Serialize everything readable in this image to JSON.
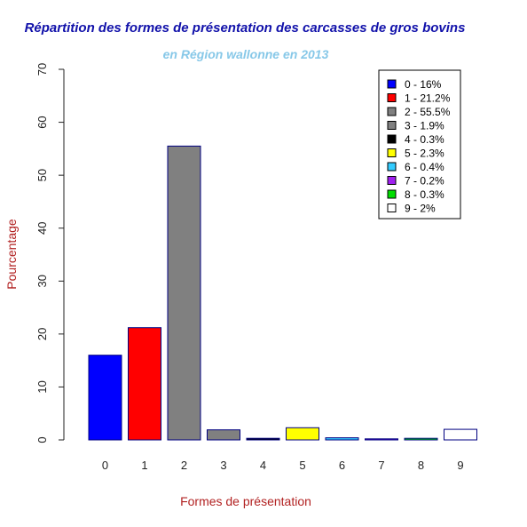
{
  "chart_data": {
    "type": "bar",
    "title": "Répartition des formes de présentation des carcasses de gros bovins",
    "subtitle": "en Région wallonne en 2013",
    "xlabel": "Formes de présentation",
    "ylabel": "Pourcentage",
    "categories": [
      "0",
      "1",
      "2",
      "3",
      "4",
      "5",
      "6",
      "7",
      "8",
      "9"
    ],
    "values": [
      16,
      21.2,
      55.5,
      1.9,
      0.3,
      2.3,
      0.4,
      0.2,
      0.3,
      2
    ],
    "colors": [
      "#0000ff",
      "#ff0000",
      "#808080",
      "#808080",
      "#000000",
      "#ffff00",
      "#33ccff",
      "#a020f0",
      "#00dd00",
      "#ffffff"
    ],
    "ylim": [
      0,
      70
    ],
    "yticks": [
      "0",
      "10",
      "20",
      "30",
      "40",
      "50",
      "60",
      "70"
    ],
    "legend": {
      "position": "top-right",
      "entries": [
        "0 - 16%",
        "1 - 21.2%",
        "2 - 55.5%",
        "3 - 1.9%",
        "4 - 0.3%",
        "5 - 2.3%",
        "6 - 0.4%",
        "7 - 0.2%",
        "8 - 0.3%",
        "9 - 2%"
      ]
    },
    "grid": false
  }
}
